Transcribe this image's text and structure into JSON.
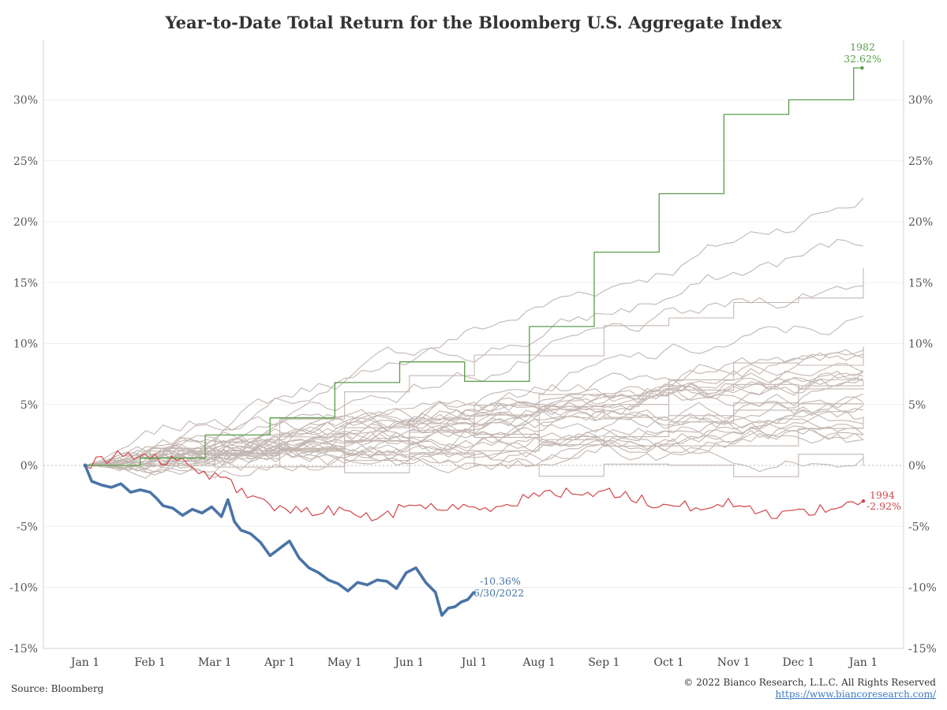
{
  "chart_data": {
    "type": "line",
    "title": "Year-to-Date Total Return for the Bloomberg U.S. Aggregate Index",
    "xlabel": "",
    "ylabel": "",
    "x_domain_months": [
      0,
      12
    ],
    "ylim": [
      -15,
      35
    ],
    "x_ticks": [
      {
        "label": "Jan 1",
        "month": 0
      },
      {
        "label": "Feb 1",
        "month": 1
      },
      {
        "label": "Mar 1",
        "month": 2
      },
      {
        "label": "Apr 1",
        "month": 3
      },
      {
        "label": "May 1",
        "month": 4
      },
      {
        "label": "Jun 1",
        "month": 5
      },
      {
        "label": "Jul 1",
        "month": 6
      },
      {
        "label": "Aug 1",
        "month": 7
      },
      {
        "label": "Sep 1",
        "month": 8
      },
      {
        "label": "Oct 1",
        "month": 9
      },
      {
        "label": "Nov 1",
        "month": 10
      },
      {
        "label": "Dec 1",
        "month": 11
      },
      {
        "label": "Jan 1",
        "month": 12
      }
    ],
    "y_ticks": [
      {
        "label": "30%",
        "value": 30
      },
      {
        "label": "25%",
        "value": 25
      },
      {
        "label": "20%",
        "value": 20
      },
      {
        "label": "15%",
        "value": 15
      },
      {
        "label": "10%",
        "value": 10
      },
      {
        "label": "5%",
        "value": 5
      },
      {
        "label": "0%",
        "value": 0
      },
      {
        "label": "-5%",
        "value": -5
      },
      {
        "label": "-10%",
        "value": -10
      },
      {
        "label": "-15%",
        "value": -15
      }
    ],
    "gridlines": true,
    "colors": {
      "highlight_2022": "#4a74a6",
      "year_1982": "#5a9e4a",
      "year_1994": "#d0474b",
      "other_years": "#c3b7b1"
    },
    "background_finals": [
      22.1,
      18.5,
      16.0,
      15.2,
      11.7,
      10.3,
      9.6,
      9.0,
      8.7,
      8.4,
      8.0,
      7.8,
      7.6,
      7.5,
      7.2,
      7.0,
      6.5,
      6.2,
      5.9,
      5.6,
      5.3,
      4.4,
      4.2,
      4.0,
      3.7,
      3.5,
      3.2,
      2.9,
      2.6,
      2.2,
      1.6,
      1.3,
      -0.3
    ],
    "series": [
      {
        "name": "2022",
        "x": [
          0,
          0.1,
          0.25,
          0.4,
          0.55,
          0.7,
          0.85,
          1.0,
          1.1,
          1.2,
          1.35,
          1.5,
          1.65,
          1.8,
          1.95,
          2.1,
          2.2,
          2.3,
          2.4,
          2.55,
          2.7,
          2.85,
          3.0,
          3.15,
          3.3,
          3.45,
          3.6,
          3.75,
          3.9,
          4.05,
          4.2,
          4.35,
          4.5,
          4.65,
          4.8,
          4.95,
          5.1,
          5.25,
          5.4,
          5.5,
          5.6,
          5.7,
          5.8,
          5.9,
          6.0
        ],
        "values": [
          0,
          -1.3,
          -1.6,
          -1.8,
          -1.5,
          -2.2,
          -2.0,
          -2.2,
          -2.7,
          -3.3,
          -3.5,
          -4.1,
          -3.6,
          -3.9,
          -3.4,
          -4.2,
          -2.8,
          -4.6,
          -5.3,
          -5.6,
          -6.3,
          -7.4,
          -6.8,
          -6.2,
          -7.6,
          -8.4,
          -8.8,
          -9.4,
          -9.7,
          -10.3,
          -9.6,
          -9.8,
          -9.4,
          -9.5,
          -10.1,
          -8.8,
          -8.4,
          -9.6,
          -10.4,
          -12.3,
          -11.7,
          -11.6,
          -11.2,
          -11.0,
          -10.36
        ]
      },
      {
        "name": "1982",
        "x": [
          0,
          0.85,
          0.85,
          1.85,
          1.85,
          2.85,
          2.85,
          3.85,
          3.85,
          4.85,
          4.85,
          5.85,
          5.85,
          6.85,
          6.85,
          7.85,
          7.85,
          8.85,
          8.85,
          9.85,
          9.85,
          10.85,
          10.85,
          11.85,
          11.85,
          11.98
        ],
        "values": [
          0,
          0,
          0.6,
          0.6,
          2.5,
          2.5,
          3.9,
          3.9,
          6.8,
          6.8,
          8.5,
          8.5,
          6.9,
          6.9,
          11.4,
          11.4,
          17.5,
          17.5,
          22.3,
          22.3,
          28.8,
          28.8,
          30.0,
          30.0,
          32.62,
          32.62
        ]
      },
      {
        "name": "1994",
        "x": [
          0,
          0.5,
          1.0,
          1.5,
          2.0,
          2.5,
          3.0,
          3.5,
          4.0,
          4.5,
          5.0,
          5.5,
          6.0,
          6.5,
          7.0,
          7.5,
          8.0,
          8.5,
          9.0,
          9.5,
          10.0,
          10.5,
          11.0,
          11.5,
          12.0
        ],
        "values": [
          0,
          0.8,
          0.6,
          0.2,
          -0.9,
          -2.3,
          -3.6,
          -3.9,
          -3.5,
          -4.6,
          -3.1,
          -3.5,
          -3.6,
          -3.1,
          -2.4,
          -2.2,
          -2.1,
          -2.7,
          -3.4,
          -3.3,
          -3.1,
          -4.0,
          -3.8,
          -3.5,
          -2.92
        ]
      }
    ],
    "annotations": {
      "label_2022_return": "-10.36%",
      "label_2022_date": "6/30/2022",
      "label_1982_year": "1982",
      "label_1982_return": "32.62%",
      "label_1994_year": "1994",
      "label_1994_return": "-2.92%"
    }
  },
  "footer": {
    "source": "Source: Bloomberg",
    "copyright": "© 2022 Bianco Research, L.L.C. All Rights Reserved",
    "url": "https://www.biancoresearch.com/"
  }
}
